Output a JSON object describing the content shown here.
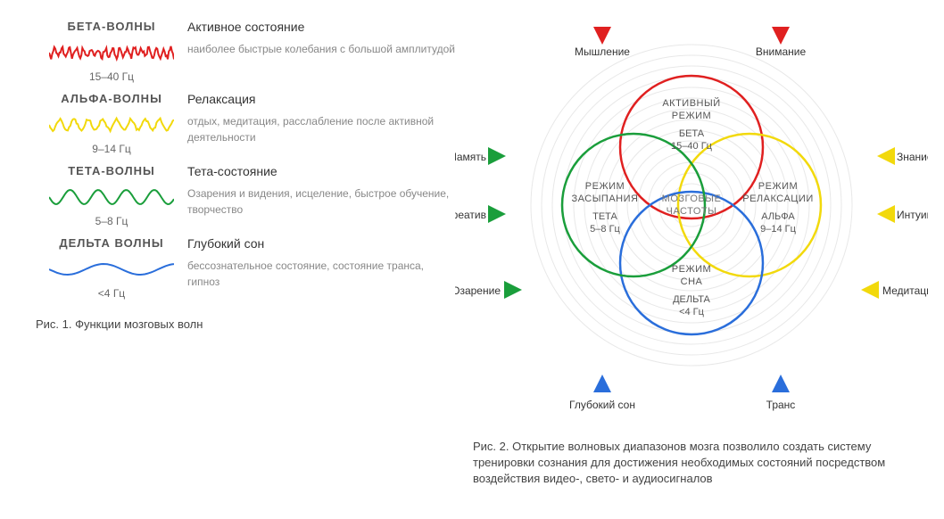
{
  "waves": [
    {
      "title": "БЕТА-ВОЛНЫ",
      "freq": "15–40 Гц",
      "state": "Активное состояние",
      "desc": "наиболее быстрые колебания с большой амплитудой",
      "color": "#e02020",
      "kind": "beta"
    },
    {
      "title": "АЛЬФА-ВОЛНЫ",
      "freq": "9–14 Гц",
      "state": "Релаксация",
      "desc": "отдых, медитация, расслабление после активной деятельности",
      "color": "#f2d90c",
      "kind": "alpha"
    },
    {
      "title": "ТЕТА-ВОЛНЫ",
      "freq": "5–8 Гц",
      "state": "Тета-состояние",
      "desc": "Озарения и видения, исцеление, быстрое обучение, творчество",
      "color": "#1a9e3b",
      "kind": "theta"
    },
    {
      "title": "ДЕЛЬТА ВОЛНЫ",
      "freq": "<4 Гц",
      "state": "Глубокий сон",
      "desc": "бессознательное состояние, состояние транса, гипноз",
      "color": "#2a6edb",
      "kind": "delta"
    }
  ],
  "fig1": "Рис. 1. Функции мозговых волн",
  "fig2": "Рис. 2. Открытие волновых диапазонов мозга позволило создать систему тренировки сознания для достижения необходимых состояний посредством воздействия видео-, свето- и аудиосигналов",
  "venn": {
    "bg_rings_color": "#e8e8e8",
    "center": [
      "МОЗГОВЫЕ",
      "ЧАСТОТЫ"
    ],
    "circles": {
      "top": {
        "color": "#e02020",
        "l1": "АКТИВНЫЙ",
        "l2": "РЕЖИМ",
        "l3": "БЕТА",
        "l4": "15–40 Гц"
      },
      "right": {
        "color": "#f2d90c",
        "l1": "РЕЖИМ",
        "l2": "РЕЛАКСАЦИИ",
        "l3": "АЛЬФА",
        "l4": "9–14 Гц"
      },
      "left": {
        "color": "#1a9e3b",
        "l1": "РЕЖИМ",
        "l2": "ЗАСЫПАНИЯ",
        "l3": "ТЕТА",
        "l4": "5–8 Гц"
      },
      "bottom": {
        "color": "#2a6edb",
        "l1": "РЕЖИМ",
        "l2": "СНА",
        "l3": "ДЕЛЬТА",
        "l4": "<4 Гц"
      }
    },
    "labels": {
      "topL": "Мышление",
      "topR": "Внимание",
      "rightU": "Знание",
      "rightD": "Интуиция",
      "leftU": "Память",
      "leftD": "Креатив",
      "midR": "Медитация",
      "midL": "Озарение",
      "botL": "Глубокий сон",
      "botR": "Транс"
    }
  }
}
